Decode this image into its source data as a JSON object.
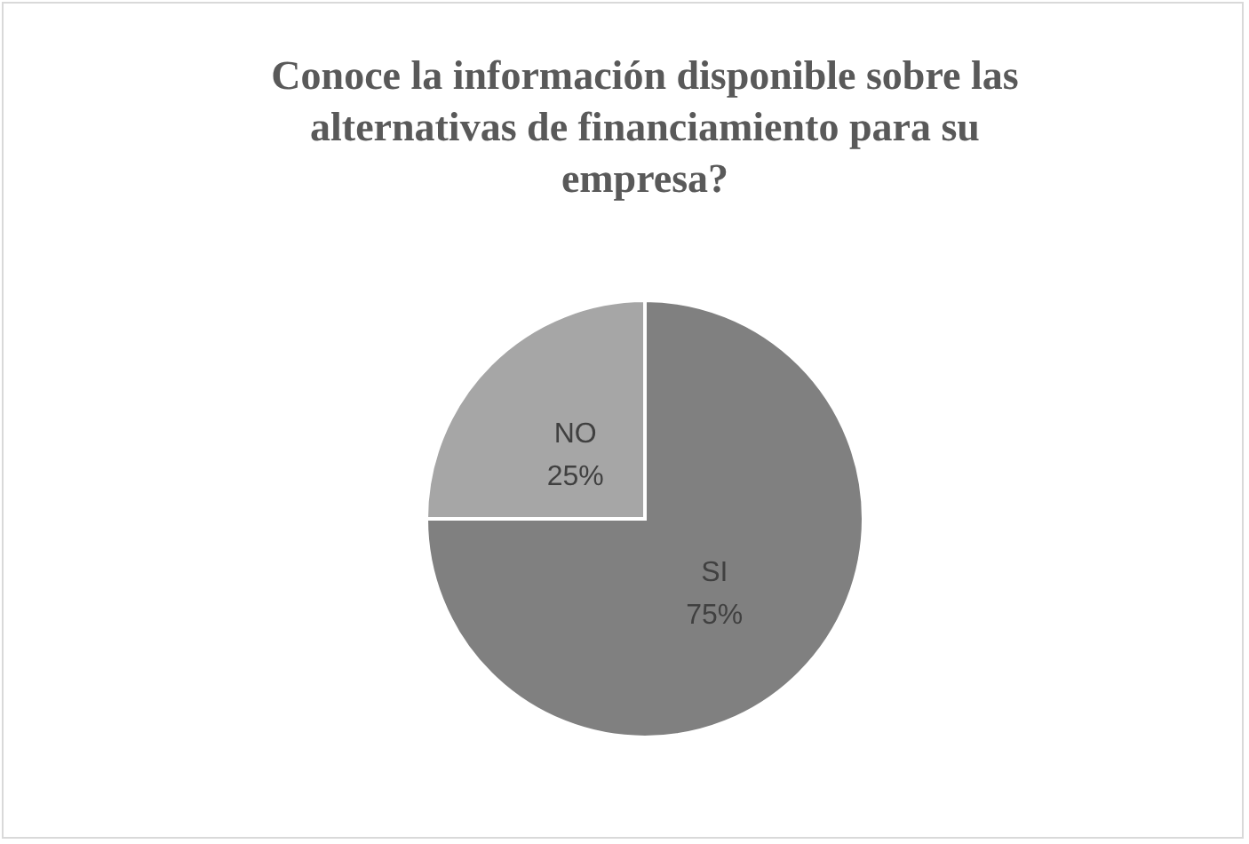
{
  "chart_data": {
    "type": "pie",
    "title": "Conoce la información disponible sobre las alternativas de financiamiento para su empresa?",
    "categories": [
      "SI",
      "NO"
    ],
    "values": [
      75,
      25
    ],
    "colors": [
      "#808080",
      "#a6a6a6"
    ],
    "value_labels": [
      "75%",
      "25%"
    ],
    "legend": false
  }
}
